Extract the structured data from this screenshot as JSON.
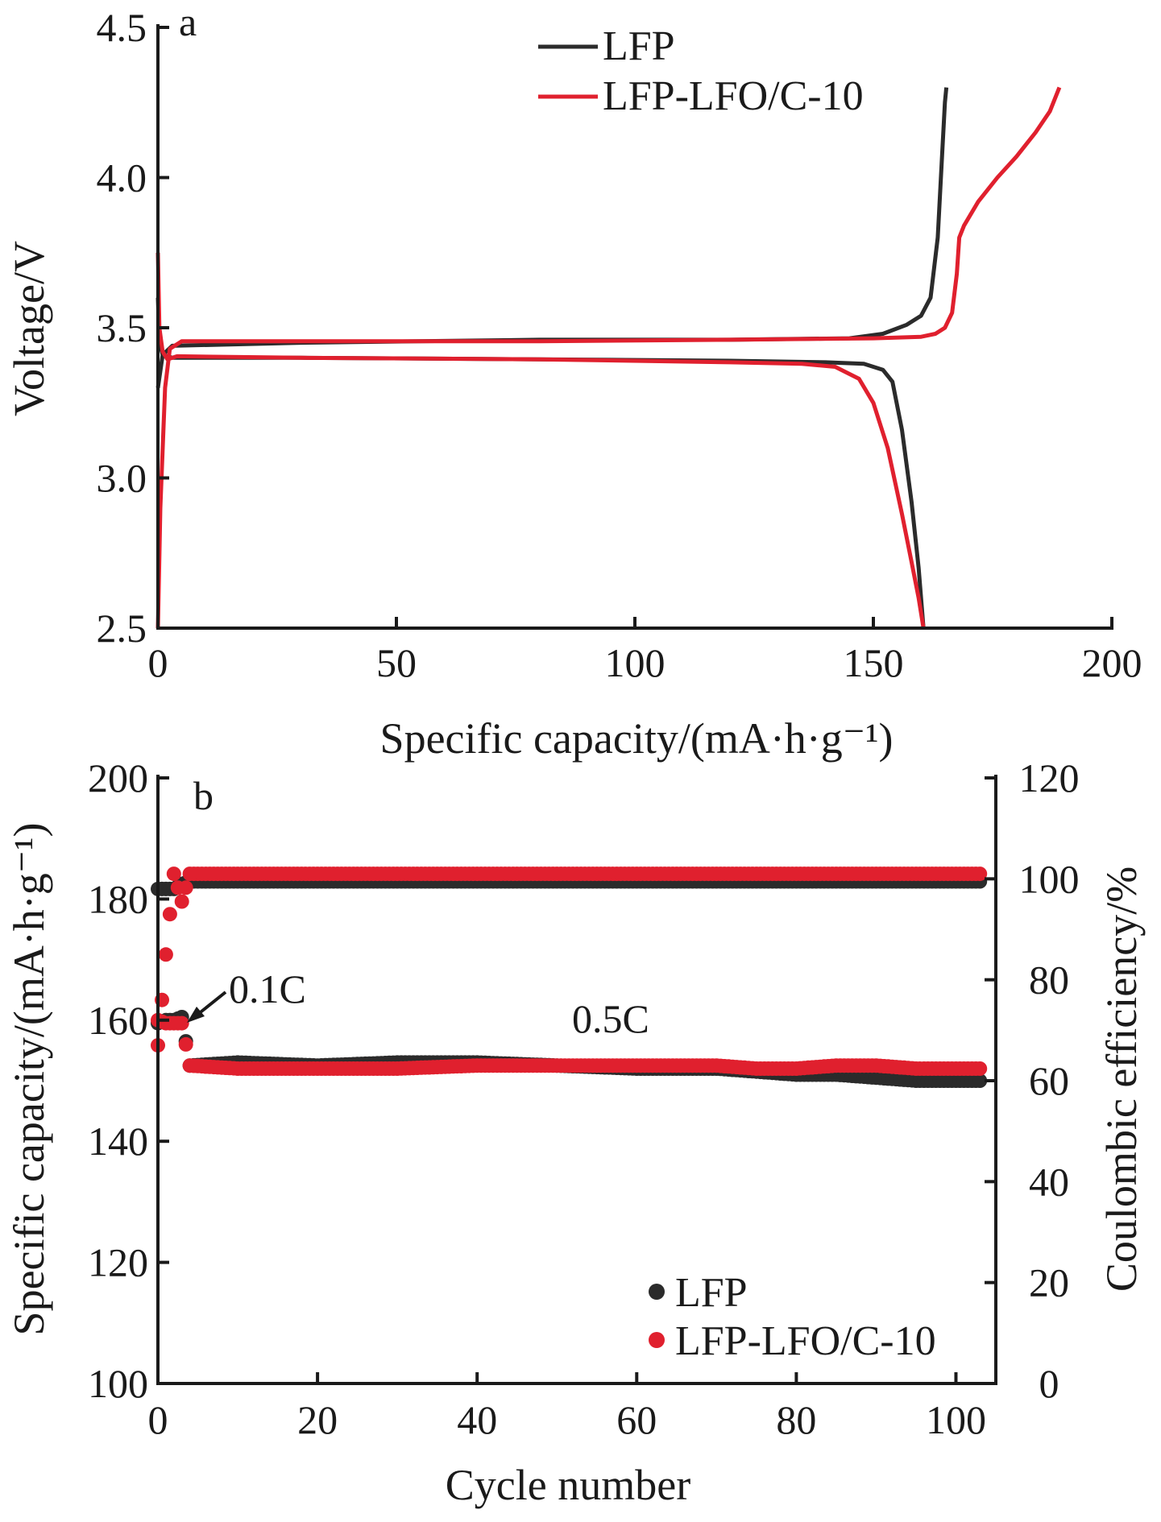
{
  "colors": {
    "lfp": "#2b2b2b",
    "lfo": "#e0202e",
    "axis": "#1a1a1a"
  },
  "chart_data": [
    {
      "type": "line",
      "panel_label": "a",
      "xlabel": "Specific capacity/(mA·h·g⁻¹)",
      "ylabel": "Voltage/V",
      "xlim": [
        0,
        200
      ],
      "ylim": [
        2.5,
        4.5
      ],
      "xticks": [
        "0",
        "50",
        "100",
        "150",
        "200"
      ],
      "yticks": [
        "2.5",
        "3.0",
        "3.5",
        "4.0",
        "4.5"
      ],
      "grid": false,
      "legend_position": "top-right",
      "series": [
        {
          "name": "LFP",
          "color": "#2b2b2b",
          "curves": [
            {
              "segment": "charge",
              "points": [
                [
                  0,
                  3.3
                ],
                [
                  1,
                  3.41
                ],
                [
                  3,
                  3.44
                ],
                [
                  30,
                  3.45
                ],
                [
                  80,
                  3.46
                ],
                [
                  120,
                  3.46
                ],
                [
                  145,
                  3.465
                ],
                [
                  152,
                  3.48
                ],
                [
                  157,
                  3.51
                ],
                [
                  160,
                  3.54
                ],
                [
                  162,
                  3.6
                ],
                [
                  163.5,
                  3.8
                ],
                [
                  164.5,
                  4.1
                ],
                [
                  165,
                  4.25
                ],
                [
                  165.3,
                  4.3
                ]
              ]
            },
            {
              "segment": "discharge",
              "points": [
                [
                  0,
                  3.6
                ],
                [
                  0.3,
                  3.45
                ],
                [
                  1,
                  3.41
                ],
                [
                  3,
                  3.4
                ],
                [
                  30,
                  3.4
                ],
                [
                  80,
                  3.395
                ],
                [
                  120,
                  3.39
                ],
                [
                  140,
                  3.385
                ],
                [
                  148,
                  3.38
                ],
                [
                  152,
                  3.36
                ],
                [
                  154,
                  3.32
                ],
                [
                  156,
                  3.16
                ],
                [
                  158,
                  2.92
                ],
                [
                  159.5,
                  2.7
                ],
                [
                  160.5,
                  2.5
                ]
              ]
            }
          ]
        },
        {
          "name": "LFP-LFO/C-10",
          "color": "#e0202e",
          "curves": [
            {
              "segment": "charge",
              "points": [
                [
                  0,
                  2.5
                ],
                [
                  0.5,
                  2.9
                ],
                [
                  1.5,
                  3.3
                ],
                [
                  2.5,
                  3.43
                ],
                [
                  5,
                  3.455
                ],
                [
                  30,
                  3.455
                ],
                [
                  80,
                  3.455
                ],
                [
                  120,
                  3.46
                ],
                [
                  150,
                  3.465
                ],
                [
                  160,
                  3.47
                ],
                [
                  163,
                  3.48
                ],
                [
                  165,
                  3.5
                ],
                [
                  166.5,
                  3.55
                ],
                [
                  167.5,
                  3.68
                ],
                [
                  168,
                  3.8
                ],
                [
                  169,
                  3.84
                ],
                [
                  172,
                  3.92
                ],
                [
                  176,
                  4.0
                ],
                [
                  180,
                  4.07
                ],
                [
                  184,
                  4.15
                ],
                [
                  187,
                  4.22
                ],
                [
                  189,
                  4.3
                ]
              ]
            },
            {
              "segment": "discharge",
              "points": [
                [
                  0,
                  3.75
                ],
                [
                  0.3,
                  3.5
                ],
                [
                  1,
                  3.42
                ],
                [
                  2,
                  3.395
                ],
                [
                  4,
                  3.405
                ],
                [
                  30,
                  3.4
                ],
                [
                  80,
                  3.395
                ],
                [
                  120,
                  3.385
                ],
                [
                  135,
                  3.38
                ],
                [
                  142,
                  3.37
                ],
                [
                  147,
                  3.33
                ],
                [
                  150,
                  3.25
                ],
                [
                  153,
                  3.1
                ],
                [
                  156,
                  2.88
                ],
                [
                  158,
                  2.72
                ],
                [
                  159.5,
                  2.6
                ],
                [
                  160.5,
                  2.5
                ]
              ]
            }
          ]
        }
      ]
    },
    {
      "type": "scatter",
      "panel_label": "b",
      "xlabel": "Cycle number",
      "ylabel": "Specific capacity/(mA·h·g⁻¹)",
      "y2label": "Coulombic efficiency/%",
      "xlim": [
        0,
        105
      ],
      "ylim": [
        100,
        200
      ],
      "y2lim": [
        0,
        120
      ],
      "xticks": [
        "0",
        "20",
        "40",
        "60",
        "80",
        "100"
      ],
      "yticks": [
        "100",
        "120",
        "140",
        "160",
        "180",
        "200"
      ],
      "y2ticks": [
        "0",
        "20",
        "40",
        "60",
        "80",
        "100",
        "120"
      ],
      "grid": false,
      "legend_position": "bottom-right",
      "annotations": [
        "0.1C",
        "0.5C"
      ],
      "series": [
        {
          "name": "LFP",
          "color": "#2b2b2b",
          "capacity": {
            "x": [
              0,
              1,
              2,
              3,
              4,
              10,
              20,
              30,
              40,
              50,
              60,
              70,
              75,
              80,
              85,
              90,
              95,
              100,
              103
            ],
            "y": [
              159.5,
              160,
              160,
              160.5,
              152.5,
              153,
              152.5,
              153,
              153,
              152.5,
              152,
              152,
              151.5,
              151,
              151,
              150.5,
              150,
              150,
              150
            ]
          },
          "efficiency": {
            "x": [
              0,
              1,
              2,
              3,
              4,
              10,
              20,
              30,
              40,
              50,
              60,
              70,
              80,
              90,
              100,
              103
            ],
            "y": [
              98,
              98,
              98,
              99,
              99.5,
              99.5,
              99.5,
              99.5,
              99.5,
              99.5,
              99.5,
              99.5,
              99.5,
              99.5,
              99.5,
              99.5
            ]
          }
        },
        {
          "name": "LFP-LFO/C-10",
          "color": "#e0202e",
          "capacity": {
            "x": [
              0,
              1,
              2,
              3,
              4,
              10,
              20,
              30,
              40,
              50,
              60,
              70,
              75,
              80,
              85,
              90,
              95,
              100,
              103
            ],
            "y": [
              160,
              159.5,
              159.5,
              159.5,
              152.5,
              152,
              152,
              152,
              152.5,
              152.5,
              152.5,
              152.5,
              152,
              152,
              152.5,
              152.5,
              152,
              152,
              152
            ]
          },
          "efficiency": {
            "x": [
              0,
              1,
              2,
              3,
              4,
              10,
              20,
              30,
              40,
              50,
              60,
              70,
              80,
              90,
              100,
              103
            ],
            "y": [
              67,
              85,
              101,
              95.5,
              101,
              101,
              101,
              101,
              101,
              101,
              101,
              101,
              101,
              101,
              101,
              101
            ]
          }
        }
      ]
    }
  ]
}
